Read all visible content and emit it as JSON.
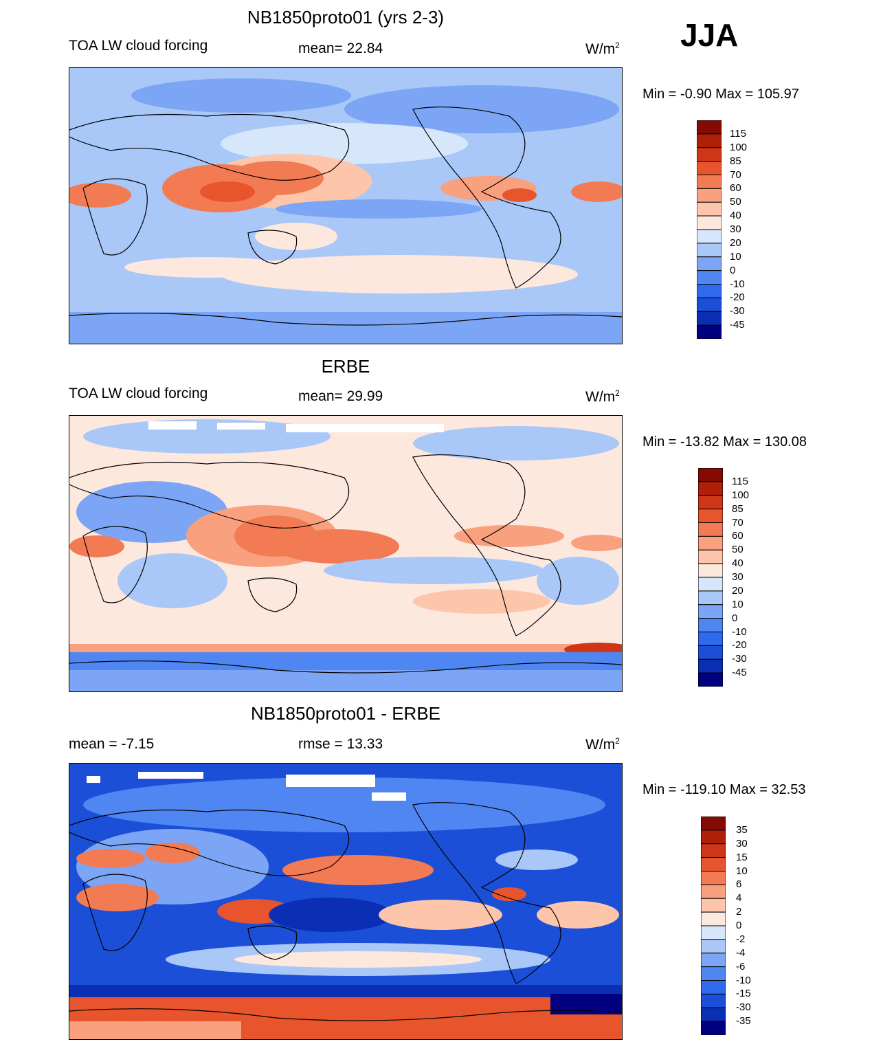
{
  "season": "JJA",
  "colors": {
    "model_scale": [
      "#000080",
      "#0a2fb4",
      "#1c4fd8",
      "#2e6aeb",
      "#4f86f2",
      "#7ca6f5",
      "#a9c7f7",
      "#d6e6fb",
      "#fde8de",
      "#fdc6ab",
      "#f9a07e",
      "#f37b53",
      "#e8552d",
      "#cf3617",
      "#b01f0a",
      "#840b03"
    ],
    "diff_scale": [
      "#000080",
      "#0a2fb4",
      "#1c4fd8",
      "#2e6aeb",
      "#4f86f2",
      "#7ca6f5",
      "#a9c7f7",
      "#d6e6fb",
      "#fde8de",
      "#fdc6ab",
      "#f9a07e",
      "#f37b53",
      "#e8552d",
      "#cf3617",
      "#b01f0a",
      "#840b03"
    ],
    "coast": "#000000"
  },
  "panels": [
    {
      "title": "NB1850proto01 (yrs 2-3)",
      "left_label": "TOA LW cloud forcing",
      "center_label": "mean=  22.84",
      "units": "W/m",
      "units_sup": "2",
      "minmax": "Min =  -0.90 Max = 105.97",
      "colorbar_labels": [
        "115",
        "100",
        "85",
        "70",
        "60",
        "50",
        "40",
        "30",
        "20",
        "10",
        "0",
        "-10",
        "-20",
        "-30",
        "-45"
      ]
    },
    {
      "title": "ERBE",
      "left_label": "TOA LW cloud forcing",
      "center_label": "mean=  29.99",
      "units": "W/m",
      "units_sup": "2",
      "minmax": "Min = -13.82 Max = 130.08",
      "colorbar_labels": [
        "115",
        "100",
        "85",
        "70",
        "60",
        "50",
        "40",
        "30",
        "20",
        "10",
        "0",
        "-10",
        "-20",
        "-30",
        "-45"
      ]
    },
    {
      "title": "NB1850proto01 - ERBE",
      "left_label": "mean =  -7.15",
      "center_label": "rmse =  13.33",
      "units": "W/m",
      "units_sup": "2",
      "minmax": "Min = -119.10 Max =  32.53",
      "colorbar_labels": [
        "35",
        "30",
        "15",
        "10",
        "6",
        "4",
        "2",
        "0",
        "-2",
        "-4",
        "-6",
        "-10",
        "-15",
        "-30",
        "-35"
      ]
    }
  ],
  "chart_data": [
    {
      "type": "heatmap",
      "title": "NB1850proto01 (yrs 2-3)",
      "variable": "TOA LW cloud forcing",
      "season": "JJA",
      "mean": 22.84,
      "min": -0.9,
      "max": 105.97,
      "units": "W/m2",
      "contour_levels": [
        -45,
        -30,
        -20,
        -10,
        0,
        10,
        20,
        30,
        40,
        50,
        60,
        70,
        85,
        100,
        115
      ]
    },
    {
      "type": "heatmap",
      "title": "ERBE",
      "variable": "TOA LW cloud forcing",
      "season": "JJA",
      "mean": 29.99,
      "min": -13.82,
      "max": 130.08,
      "units": "W/m2",
      "contour_levels": [
        -45,
        -30,
        -20,
        -10,
        0,
        10,
        20,
        30,
        40,
        50,
        60,
        70,
        85,
        100,
        115
      ]
    },
    {
      "type": "heatmap",
      "title": "NB1850proto01 - ERBE",
      "season": "JJA",
      "mean": -7.15,
      "rmse": 13.33,
      "min": -119.1,
      "max": 32.53,
      "units": "W/m2",
      "contour_levels": [
        -35,
        -30,
        -15,
        -10,
        -6,
        -4,
        -2,
        0,
        2,
        4,
        6,
        10,
        15,
        30,
        35
      ]
    }
  ]
}
